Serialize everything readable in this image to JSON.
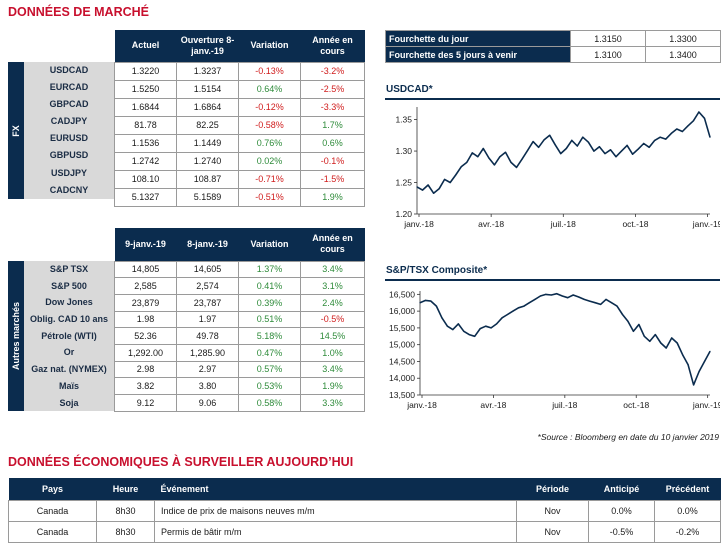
{
  "titles": {
    "market": "DONNÉES DE MARCHÉ",
    "eco": "DONNÉES ÉCONOMIQUES À SURVEILLER AUJOURD’HUI"
  },
  "fx": {
    "side_label": "FX",
    "headers": [
      "Actuel",
      "Ouverture 8-janv.-19",
      "Variation",
      "Année en cours"
    ],
    "rows": [
      {
        "name": "USDCAD",
        "actuel": "1.3220",
        "ouverture": "1.3237",
        "variation": "-0.13%",
        "annee": "-3.2%"
      },
      {
        "name": "EURCAD",
        "actuel": "1.5250",
        "ouverture": "1.5154",
        "variation": "0.64%",
        "annee": "-2.5%"
      },
      {
        "name": "GBPCAD",
        "actuel": "1.6844",
        "ouverture": "1.6864",
        "variation": "-0.12%",
        "annee": "-3.3%"
      },
      {
        "name": "CADJPY",
        "actuel": "81.78",
        "ouverture": "82.25",
        "variation": "-0.58%",
        "annee": "1.7%"
      },
      {
        "name": "EURUSD",
        "actuel": "1.1536",
        "ouverture": "1.1449",
        "variation": "0.76%",
        "annee": "0.6%"
      },
      {
        "name": "GBPUSD",
        "actuel": "1.2742",
        "ouverture": "1.2740",
        "variation": "0.02%",
        "annee": "-0.1%"
      },
      {
        "name": "USDJPY",
        "actuel": "108.10",
        "ouverture": "108.87",
        "variation": "-0.71%",
        "annee": "-1.5%"
      },
      {
        "name": "CADCNY",
        "actuel": "5.1327",
        "ouverture": "5.1589",
        "variation": "-0.51%",
        "annee": "1.9%"
      }
    ]
  },
  "other": {
    "side_label": "Autres marchés",
    "headers": [
      "9-janv.-19",
      "8-janv.-19",
      "Variation",
      "Année en cours"
    ],
    "rows": [
      {
        "name": "S&P TSX",
        "a": "14,805",
        "b": "14,605",
        "variation": "1.37%",
        "annee": "3.4%"
      },
      {
        "name": "S&P 500",
        "a": "2,585",
        "b": "2,574",
        "variation": "0.41%",
        "annee": "3.1%"
      },
      {
        "name": "Dow Jones",
        "a": "23,879",
        "b": "23,787",
        "variation": "0.39%",
        "annee": "2.4%"
      },
      {
        "name": "Oblig. CAD 10 ans",
        "a": "1.98",
        "b": "1.97",
        "variation": "0.51%",
        "annee": "-0.5%"
      },
      {
        "name": "Pétrole (WTI)",
        "a": "52.36",
        "b": "49.78",
        "variation": "5.18%",
        "annee": "14.5%"
      },
      {
        "name": "Or",
        "a": "1,292.00",
        "b": "1,285.90",
        "variation": "0.47%",
        "annee": "1.0%"
      },
      {
        "name": "Gaz nat. (NYMEX)",
        "a": "2.98",
        "b": "2.97",
        "variation": "0.57%",
        "annee": "3.4%"
      },
      {
        "name": "Maïs",
        "a": "3.82",
        "b": "3.80",
        "variation": "0.53%",
        "annee": "1.9%"
      },
      {
        "name": "Soja",
        "a": "9.12",
        "b": "9.06",
        "variation": "0.58%",
        "annee": "3.3%"
      }
    ]
  },
  "range": {
    "rows": [
      {
        "label": "Fourchette du jour",
        "low": "1.3150",
        "high": "1.3300"
      },
      {
        "label": "Fourchette des 5 jours à venir",
        "low": "1.3100",
        "high": "1.3400"
      }
    ]
  },
  "colors": {
    "navy": "#0b2c4e",
    "red": "#c8102e",
    "neg": "#d01c1c",
    "pos": "#2e8b3a"
  },
  "chart_data": [
    {
      "type": "line",
      "title": "USDCAD*",
      "xticks": [
        "janv.-18",
        "avr.-18",
        "juil.-18",
        "oct.-18",
        "janv.-19"
      ],
      "yticks": [
        "1.20",
        "1.25",
        "1.30",
        "1.35"
      ],
      "ylim": [
        1.2,
        1.37
      ],
      "series": [
        {
          "x": [
            0,
            1,
            2,
            3,
            4,
            5,
            6,
            7,
            8,
            9,
            10,
            11,
            12,
            13,
            14,
            15,
            16,
            17,
            18,
            19,
            20,
            21,
            22,
            23,
            24,
            25,
            26,
            27,
            28,
            29,
            30,
            31,
            32,
            33,
            34,
            35,
            36,
            37,
            38,
            39,
            40,
            41,
            42,
            43,
            44,
            45,
            46,
            47,
            48,
            49,
            50,
            51,
            52,
            53
          ],
          "values": [
            1.243,
            1.238,
            1.246,
            1.233,
            1.24,
            1.255,
            1.25,
            1.262,
            1.275,
            1.282,
            1.297,
            1.291,
            1.304,
            1.289,
            1.278,
            1.291,
            1.298,
            1.282,
            1.274,
            1.287,
            1.301,
            1.315,
            1.306,
            1.318,
            1.325,
            1.31,
            1.296,
            1.304,
            1.317,
            1.308,
            1.322,
            1.314,
            1.3,
            1.307,
            1.296,
            1.302,
            1.291,
            1.3,
            1.309,
            1.295,
            1.303,
            1.312,
            1.306,
            1.317,
            1.322,
            1.319,
            1.328,
            1.335,
            1.331,
            1.34,
            1.348,
            1.362,
            1.352,
            1.322
          ]
        }
      ]
    },
    {
      "type": "line",
      "title": "S&P/TSX Composite*",
      "xticks": [
        "janv.-18",
        "avr.-18",
        "juil.-18",
        "oct.-18",
        "janv.-19"
      ],
      "yticks": [
        "13,500",
        "14,000",
        "14,500",
        "15,000",
        "15,500",
        "16,000",
        "16,500"
      ],
      "ylim": [
        13500,
        16600
      ],
      "series": [
        {
          "x": [
            0,
            1,
            2,
            3,
            4,
            5,
            6,
            7,
            8,
            9,
            10,
            11,
            12,
            13,
            14,
            15,
            16,
            17,
            18,
            19,
            20,
            21,
            22,
            23,
            24,
            25,
            26,
            27,
            28,
            29,
            30,
            31,
            32,
            33,
            34,
            35,
            36,
            37,
            38,
            39,
            40,
            41,
            42,
            43,
            44,
            45,
            46,
            47,
            48,
            49,
            50,
            51,
            52,
            53
          ],
          "values": [
            16250,
            16320,
            16300,
            16150,
            15800,
            15550,
            15450,
            15620,
            15400,
            15300,
            15250,
            15480,
            15550,
            15500,
            15620,
            15800,
            15900,
            16000,
            16100,
            16150,
            16250,
            16350,
            16450,
            16500,
            16480,
            16520,
            16450,
            16400,
            16480,
            16420,
            16350,
            16300,
            16250,
            16200,
            16350,
            16250,
            16150,
            15900,
            15700,
            15400,
            15600,
            15250,
            15100,
            15300,
            15050,
            14900,
            15200,
            15050,
            14700,
            14400,
            13800,
            14200,
            14500,
            14800
          ]
        }
      ]
    }
  ],
  "source": "*Source : Bloomberg en date du  10 janvier 2019",
  "eco": {
    "headers": [
      "Pays",
      "Heure",
      "Événement",
      "Période",
      "Anticipé",
      "Précédent"
    ],
    "rows": [
      {
        "pays": "Canada",
        "heure": "8h30",
        "event": "Indice de prix de maisons neuves m/m",
        "periode": "Nov",
        "anticipe": "0.0%",
        "precedent": "0.0%"
      },
      {
        "pays": "Canada",
        "heure": "8h30",
        "event": "Permis de bâtir m/m",
        "periode": "Nov",
        "anticipe": "-0.5%",
        "precedent": "-0.2%"
      }
    ]
  }
}
